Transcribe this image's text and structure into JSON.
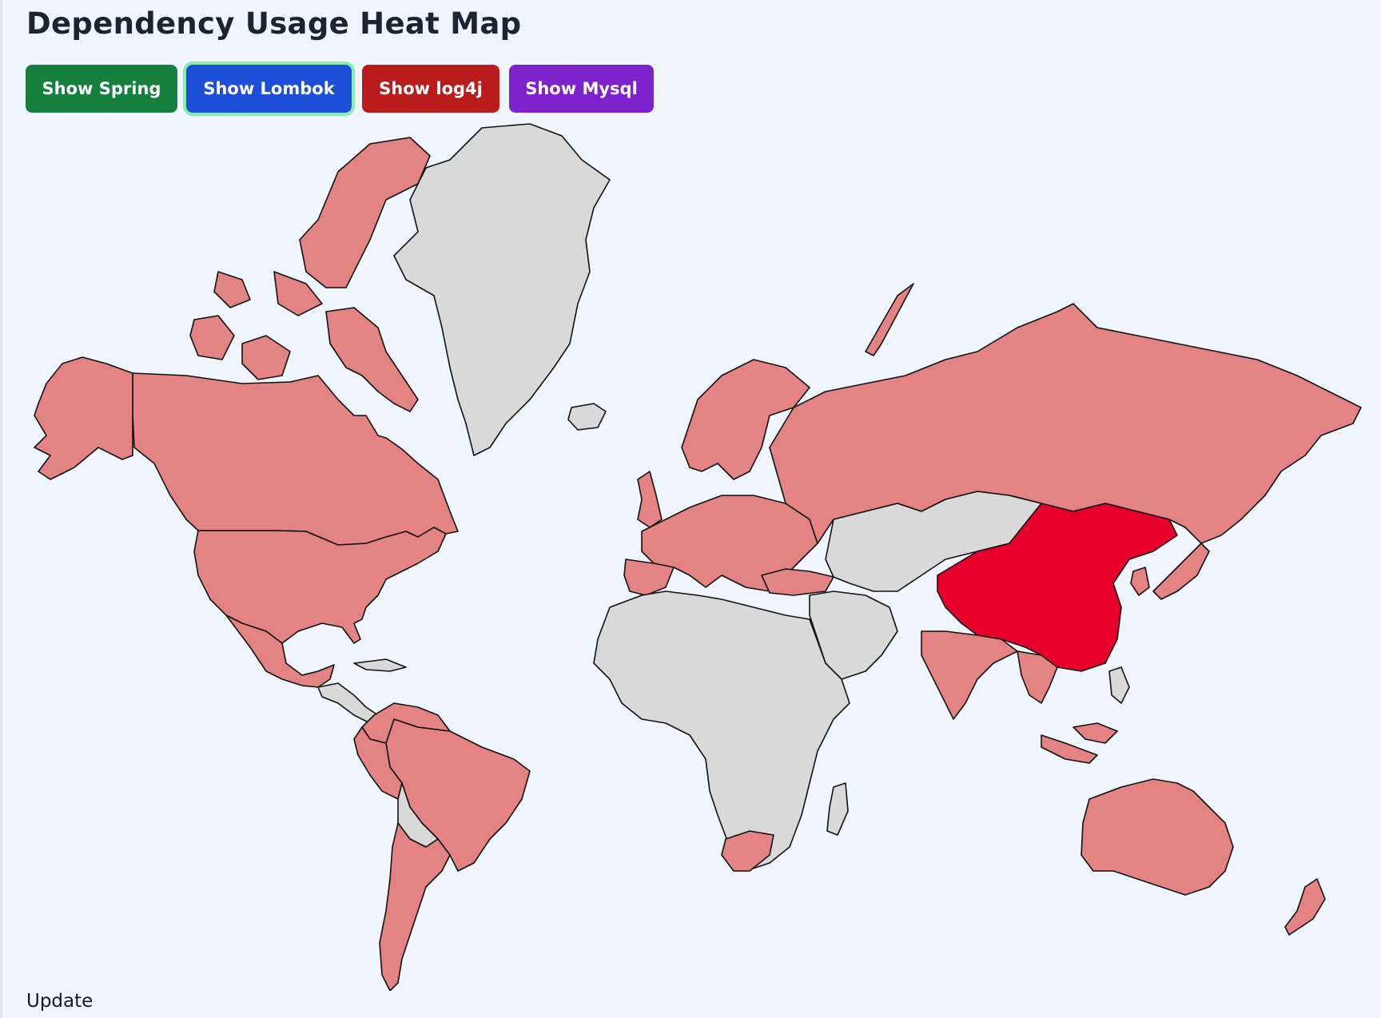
{
  "page": {
    "title": "Dependency Usage Heat Map",
    "footer_label": "Update"
  },
  "buttons": [
    {
      "label": "Show Spring",
      "color": "#15803d"
    },
    {
      "label": "Show Lombok",
      "color": "#1d4ed8",
      "selected": true
    },
    {
      "label": "Show log4j",
      "color": "#b91c1c"
    },
    {
      "label": "Show Mysql",
      "color": "#7e22ce"
    }
  ],
  "map": {
    "selected_dependency": "Lombok",
    "colors": {
      "no_data": "#d9d9d9",
      "low": "#e38383",
      "high": "#e8002d",
      "border": "#111111",
      "background": "#eff6ff"
    }
  }
}
